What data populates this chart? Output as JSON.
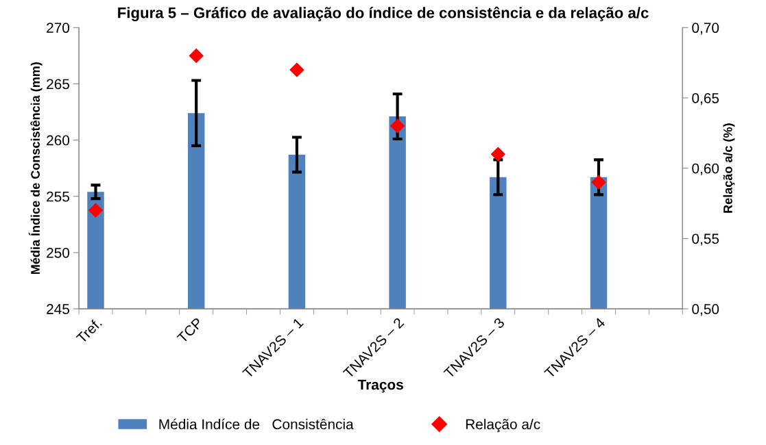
{
  "chart_data": {
    "type": "bar",
    "title": "Figura 5 – Gráfico de avaliação do índice de consistência e da relação a/c",
    "xlabel": "Traços",
    "ylabel": "Média Índice de Conscistência (mm)",
    "y2label": "Relação a/c (%)",
    "categories": [
      "Tref.",
      null,
      null,
      "TCP",
      null,
      null,
      "TNAV2S – 1",
      null,
      null,
      "TNAV2S – 2",
      null,
      null,
      "TNAV2S – 3",
      null,
      null,
      "TNAV2S – 4",
      null,
      null
    ],
    "series": [
      {
        "name": "Média Indíce de   Consistência",
        "color": "#4f81bd",
        "values": [
          255.4,
          null,
          null,
          262.4,
          null,
          null,
          258.7,
          null,
          null,
          262.1,
          null,
          null,
          256.7,
          null,
          null,
          256.7,
          null,
          null
        ],
        "errors": [
          0.6,
          null,
          null,
          2.9,
          null,
          null,
          1.55,
          null,
          null,
          2.0,
          null,
          null,
          1.55,
          null,
          null,
          1.55,
          null,
          null
        ]
      },
      {
        "name": "Relação a/c",
        "type": "scatter",
        "axis": "y2",
        "color": "#ff0000",
        "marker": "diamond",
        "values": [
          0.57,
          null,
          null,
          0.68,
          null,
          null,
          0.67,
          null,
          null,
          0.63,
          null,
          null,
          0.61,
          null,
          null,
          0.59,
          null,
          null
        ]
      }
    ],
    "ylim": [
      245,
      270
    ],
    "yticks": [
      245,
      250,
      255,
      260,
      265,
      270
    ],
    "y2lim": [
      0.5,
      0.7
    ],
    "y2ticks": [
      {
        "value": 0.5,
        "label": "0,50"
      },
      {
        "value": 0.55,
        "label": "0,55"
      },
      {
        "value": 0.6,
        "label": "0,60"
      },
      {
        "value": 0.65,
        "label": "0,65"
      },
      {
        "value": 0.7,
        "label": "0,70"
      }
    ],
    "grid": false,
    "legend": "bottom"
  }
}
